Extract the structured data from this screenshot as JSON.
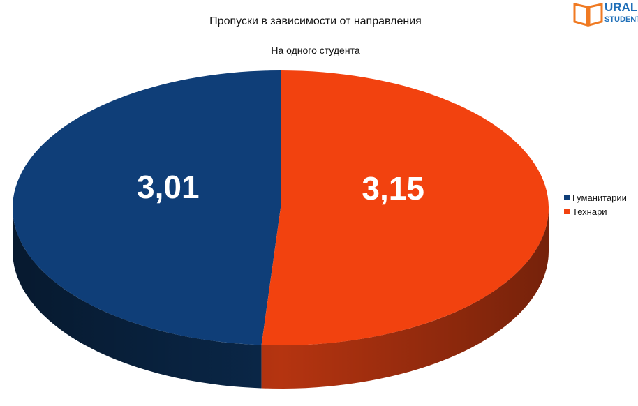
{
  "chart_data": {
    "type": "pie",
    "title": "Пропуски в зависимости от направления",
    "subtitle": "На одного студента",
    "slices": [
      {
        "label": "Гуманитарии",
        "value": 3.01,
        "value_label": "3,01",
        "color": "#0f3e78",
        "side_color": "#0a2748"
      },
      {
        "label": "Технари",
        "value": 3.15,
        "value_label": "3,15",
        "color": "#f2420f",
        "side_color": "#b53410"
      }
    ],
    "legend_position": "right",
    "style": "3d"
  },
  "logo": {
    "line1": "URAL",
    "line2": "STUDENT",
    "color": "#1f6fb8",
    "book_color": "#f07a22"
  }
}
